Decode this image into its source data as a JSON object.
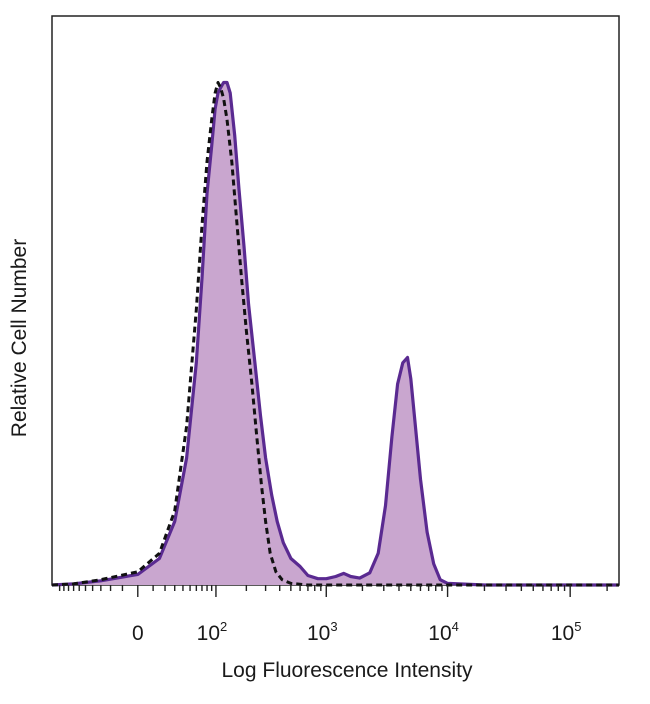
{
  "chart_data": {
    "type": "area",
    "xlabel": "Log Fluorescence Intensity",
    "ylabel": "Relative Cell Number",
    "x_scale": "biexponential",
    "x_ticks": [
      {
        "value": 0,
        "base": "0",
        "exp": ""
      },
      {
        "value": 100,
        "base": "10",
        "exp": "2"
      },
      {
        "value": 1000,
        "base": "10",
        "exp": "3"
      },
      {
        "value": 10000,
        "base": "10",
        "exp": "4"
      },
      {
        "value": 100000,
        "base": "10",
        "exp": "5"
      }
    ],
    "xlim": [
      -120,
      250000
    ],
    "ylim": [
      0,
      100
    ],
    "grid": false,
    "colors": {
      "stained_line": "#5a2a91",
      "stained_fill": "#c9a6cf",
      "control_line": "#111111",
      "axis": "#222222"
    },
    "series": [
      {
        "style": "filled-solid",
        "points": [
          [
            -120,
            0
          ],
          [
            -70,
            0.2
          ],
          [
            -30,
            0.8
          ],
          [
            0,
            2
          ],
          [
            15,
            5
          ],
          [
            30,
            12
          ],
          [
            45,
            24
          ],
          [
            60,
            42
          ],
          [
            70,
            58
          ],
          [
            80,
            74
          ],
          [
            90,
            83
          ],
          [
            98,
            90
          ],
          [
            105,
            93
          ],
          [
            112,
            94
          ],
          [
            120,
            95
          ],
          [
            130,
            95
          ],
          [
            140,
            93
          ],
          [
            155,
            85
          ],
          [
            170,
            75
          ],
          [
            190,
            64
          ],
          [
            210,
            53
          ],
          [
            240,
            42
          ],
          [
            270,
            32
          ],
          [
            300,
            24
          ],
          [
            340,
            17
          ],
          [
            380,
            12
          ],
          [
            430,
            8
          ],
          [
            500,
            5
          ],
          [
            600,
            3.5
          ],
          [
            700,
            1.8
          ],
          [
            850,
            1.2
          ],
          [
            1000,
            1.2
          ],
          [
            1200,
            1.6
          ],
          [
            1400,
            2.2
          ],
          [
            1600,
            1.6
          ],
          [
            1900,
            1.3
          ],
          [
            2300,
            2.3
          ],
          [
            2700,
            6
          ],
          [
            3100,
            15
          ],
          [
            3500,
            28
          ],
          [
            3900,
            38
          ],
          [
            4300,
            42
          ],
          [
            4700,
            43
          ],
          [
            5000,
            39
          ],
          [
            5400,
            31
          ],
          [
            6000,
            20
          ],
          [
            6800,
            10
          ],
          [
            7700,
            4
          ],
          [
            8700,
            1
          ],
          [
            10000,
            0.3
          ],
          [
            20000,
            0
          ],
          [
            250000,
            0
          ]
        ]
      },
      {
        "style": "dashed",
        "points": [
          [
            -120,
            0
          ],
          [
            -70,
            0.2
          ],
          [
            -30,
            1
          ],
          [
            0,
            2.5
          ],
          [
            15,
            6
          ],
          [
            30,
            14
          ],
          [
            45,
            30
          ],
          [
            60,
            52
          ],
          [
            70,
            68
          ],
          [
            80,
            80
          ],
          [
            90,
            88
          ],
          [
            98,
            93
          ],
          [
            105,
            95
          ],
          [
            112,
            94
          ],
          [
            120,
            92
          ],
          [
            130,
            88
          ],
          [
            145,
            80
          ],
          [
            160,
            70
          ],
          [
            180,
            58
          ],
          [
            200,
            48
          ],
          [
            225,
            38
          ],
          [
            250,
            28
          ],
          [
            275,
            19
          ],
          [
            300,
            12
          ],
          [
            330,
            6
          ],
          [
            370,
            2.5
          ],
          [
            420,
            1
          ],
          [
            500,
            0.3
          ],
          [
            700,
            0
          ],
          [
            250000,
            0
          ]
        ]
      }
    ]
  }
}
